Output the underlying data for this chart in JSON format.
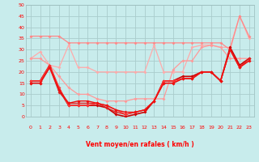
{
  "bg_color": "#c8ecec",
  "grid_color": "#aacccc",
  "xlabel": "Vent moyen/en rafales ( km/h )",
  "xlim": [
    -0.5,
    23.5
  ],
  "ylim": [
    0,
    50
  ],
  "yticks": [
    0,
    5,
    10,
    15,
    20,
    25,
    30,
    35,
    40,
    45,
    50
  ],
  "xticks": [
    0,
    1,
    2,
    3,
    4,
    5,
    6,
    7,
    8,
    9,
    10,
    11,
    12,
    13,
    14,
    15,
    16,
    17,
    18,
    19,
    20,
    21,
    22,
    23
  ],
  "series": [
    {
      "color": "#ffaaaa",
      "lw": 0.9,
      "marker": "D",
      "ms": 2.0,
      "data": [
        26,
        29,
        23,
        22,
        32,
        22,
        22,
        20,
        20,
        20,
        20,
        20,
        20,
        32,
        20,
        20,
        20,
        31,
        32,
        32,
        31,
        31,
        45,
        35
      ]
    },
    {
      "color": "#ff8888",
      "lw": 0.9,
      "marker": "D",
      "ms": 2.0,
      "data": [
        36,
        36,
        36,
        36,
        33,
        33,
        33,
        33,
        33,
        33,
        33,
        33,
        33,
        33,
        33,
        33,
        33,
        33,
        33,
        33,
        33,
        30,
        45,
        36
      ]
    },
    {
      "color": "#ff9999",
      "lw": 0.9,
      "marker": "D",
      "ms": 2.0,
      "data": [
        26,
        26,
        23,
        18,
        13,
        10,
        10,
        8,
        7,
        7,
        7,
        8,
        8,
        8,
        8,
        21,
        25,
        25,
        31,
        32,
        31,
        26,
        26,
        26
      ]
    },
    {
      "color": "#cc0000",
      "lw": 1.2,
      "marker": "D",
      "ms": 2.0,
      "data": [
        16,
        16,
        23,
        12,
        5,
        5,
        5,
        5,
        4,
        1,
        0,
        1,
        2,
        7,
        16,
        16,
        18,
        18,
        20,
        20,
        16,
        31,
        23,
        26
      ]
    },
    {
      "color": "#dd2222",
      "lw": 1.0,
      "marker": "D",
      "ms": 2.0,
      "data": [
        15,
        15,
        22,
        11,
        6,
        6,
        6,
        6,
        4,
        2,
        1,
        2,
        3,
        7,
        15,
        15,
        17,
        17,
        20,
        20,
        16,
        30,
        22,
        26
      ]
    },
    {
      "color": "#ff3333",
      "lw": 1.0,
      "marker": "D",
      "ms": 2.0,
      "data": [
        16,
        16,
        23,
        13,
        5,
        5,
        5,
        6,
        5,
        3,
        1,
        2,
        3,
        7,
        16,
        16,
        17,
        17,
        20,
        20,
        16,
        30,
        22,
        25
      ]
    },
    {
      "color": "#ee1111",
      "lw": 1.0,
      "marker": "D",
      "ms": 2.0,
      "data": [
        15,
        15,
        22,
        12,
        6,
        7,
        7,
        6,
        5,
        3,
        2,
        2,
        3,
        7,
        15,
        15,
        17,
        17,
        20,
        20,
        16,
        30,
        22,
        25
      ]
    }
  ],
  "wind_arrows": {
    "x": [
      0,
      1,
      2,
      3,
      4,
      5,
      6,
      7,
      8,
      9,
      10,
      11,
      12,
      13,
      14,
      15,
      16,
      17,
      18,
      19,
      20,
      21,
      22,
      23
    ],
    "symbols": [
      "↓",
      "↓",
      "↙",
      "↓",
      "↙",
      "→",
      "↗",
      "→",
      "→",
      "→",
      "↙",
      "↙",
      "→",
      "↙",
      "↙",
      "↙",
      "↙",
      "↙",
      "↙",
      "↙",
      "↙",
      "↙",
      "↙",
      "↙"
    ]
  }
}
